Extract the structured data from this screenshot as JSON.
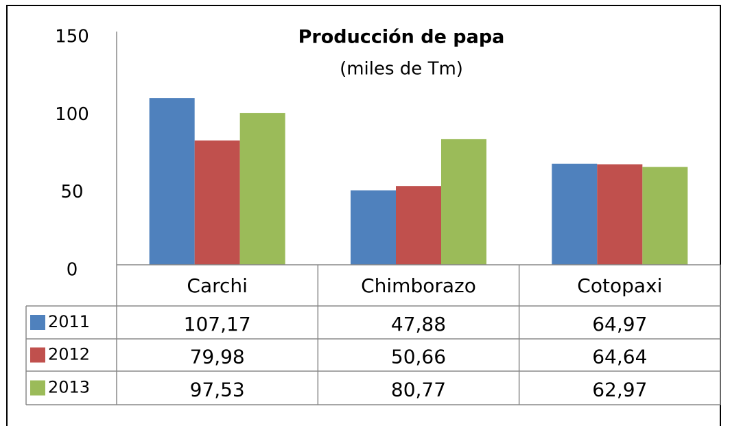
{
  "chart_data": {
    "type": "bar",
    "title": "Producción de papa",
    "subtitle": "(miles de Tm)",
    "categories": [
      "Carchi",
      "Chimborazo",
      "Cotopaxi"
    ],
    "series": [
      {
        "name": "2011",
        "color": "#4f81bd",
        "values": [
          107.17,
          47.88,
          64.97
        ],
        "value_labels": [
          "107,17",
          "47,88",
          "64,97"
        ]
      },
      {
        "name": "2012",
        "color": "#c0504d",
        "values": [
          79.98,
          50.66,
          64.64
        ],
        "value_labels": [
          "79,98",
          "50,66",
          "64,64"
        ]
      },
      {
        "name": "2013",
        "color": "#9bbb59",
        "values": [
          97.53,
          80.77,
          62.97
        ],
        "value_labels": [
          "97,53",
          "80,77",
          "62,97"
        ]
      }
    ],
    "ylim": [
      0,
      150
    ],
    "yticks": [
      0,
      50,
      100,
      150
    ],
    "grid": false
  }
}
